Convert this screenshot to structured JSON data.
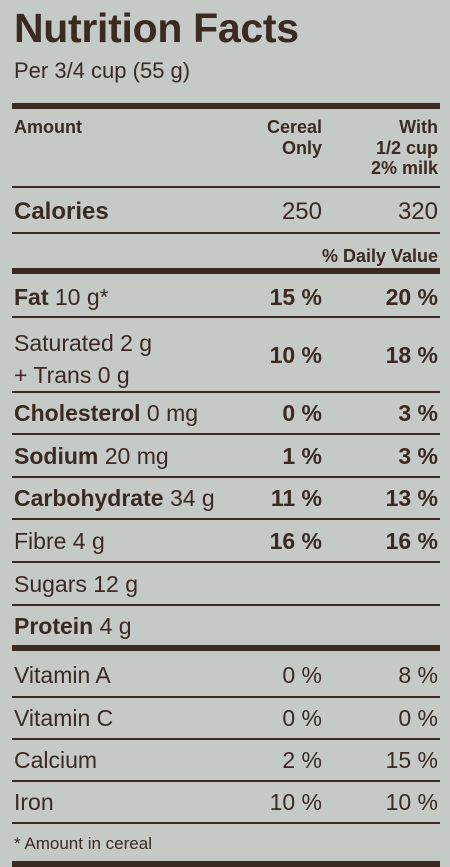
{
  "title": "Nutrition Facts",
  "serving": "Per 3/4 cup (55 g)",
  "header": {
    "amount": "Amount",
    "col1_line1": "Cereal",
    "col1_line2": "Only",
    "col2_line1": "With",
    "col2_line2": "1/2 cup",
    "col2_line3": "2% milk"
  },
  "calories": {
    "label": "Calories",
    "cereal": "250",
    "with_milk": "320"
  },
  "daily_value_label": "% Daily Value",
  "nutrients": [
    {
      "label": "Fat",
      "amount": "10 g*",
      "cereal": "15 %",
      "with_milk": "20 %"
    },
    {
      "label": "Saturated 2 g",
      "label2": "+ Trans 0 g",
      "cereal": "10 %",
      "with_milk": "18 %"
    },
    {
      "label": "Cholesterol",
      "amount": "0 mg",
      "cereal": "0 %",
      "with_milk": "3 %"
    },
    {
      "label": "Sodium",
      "amount": "20 mg",
      "cereal": "1 %",
      "with_milk": "3 %"
    },
    {
      "label": "Carbohydrate",
      "amount": "34 g",
      "cereal": "11 %",
      "with_milk": "13 %"
    },
    {
      "label": "Fibre 4 g",
      "cereal": "16 %",
      "with_milk": "16 %"
    },
    {
      "label": "Sugars 12 g"
    },
    {
      "label": "Protein",
      "amount": "4 g"
    }
  ],
  "vitamins": [
    {
      "label": "Vitamin A",
      "cereal": "0 %",
      "with_milk": "8 %"
    },
    {
      "label": "Vitamin C",
      "cereal": "0 %",
      "with_milk": "0 %"
    },
    {
      "label": "Calcium",
      "cereal": "2 %",
      "with_milk": "15 %"
    },
    {
      "label": "Iron",
      "cereal": "10 %",
      "with_milk": "10 %"
    }
  ],
  "footnote": "* Amount in cereal",
  "colors": {
    "background": "#c6cac7",
    "ink": "#3a2a22"
  }
}
